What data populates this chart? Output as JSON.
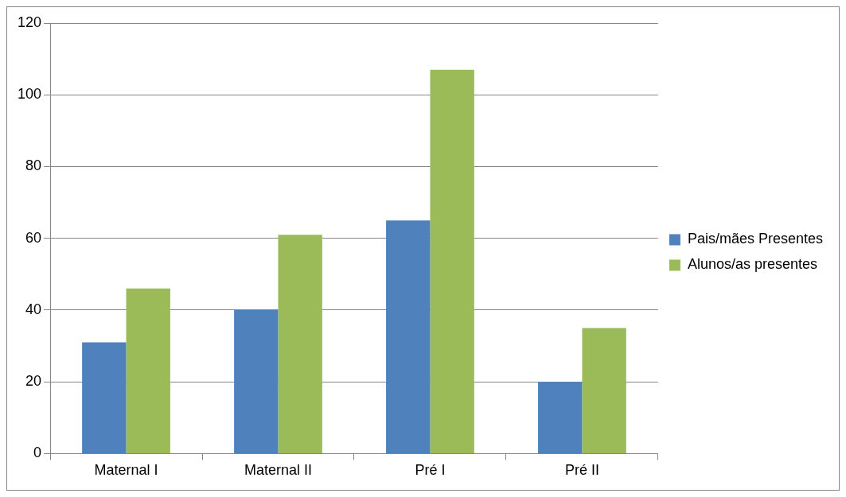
{
  "chart_data": {
    "type": "bar",
    "categories": [
      "Maternal I",
      "Maternal II",
      "Pré I",
      "Pré II"
    ],
    "series": [
      {
        "name": "Pais/mães Presentes",
        "color": "#4f81bd",
        "values": [
          31,
          40,
          65,
          20
        ]
      },
      {
        "name": "Alunos/as presentes",
        "color": "#9bbb59",
        "values": [
          46,
          61,
          107,
          35
        ]
      }
    ],
    "ylim": [
      0,
      120
    ],
    "yticks": [
      0,
      20,
      40,
      60,
      80,
      100,
      120
    ],
    "grid": "y",
    "legend": "right"
  }
}
